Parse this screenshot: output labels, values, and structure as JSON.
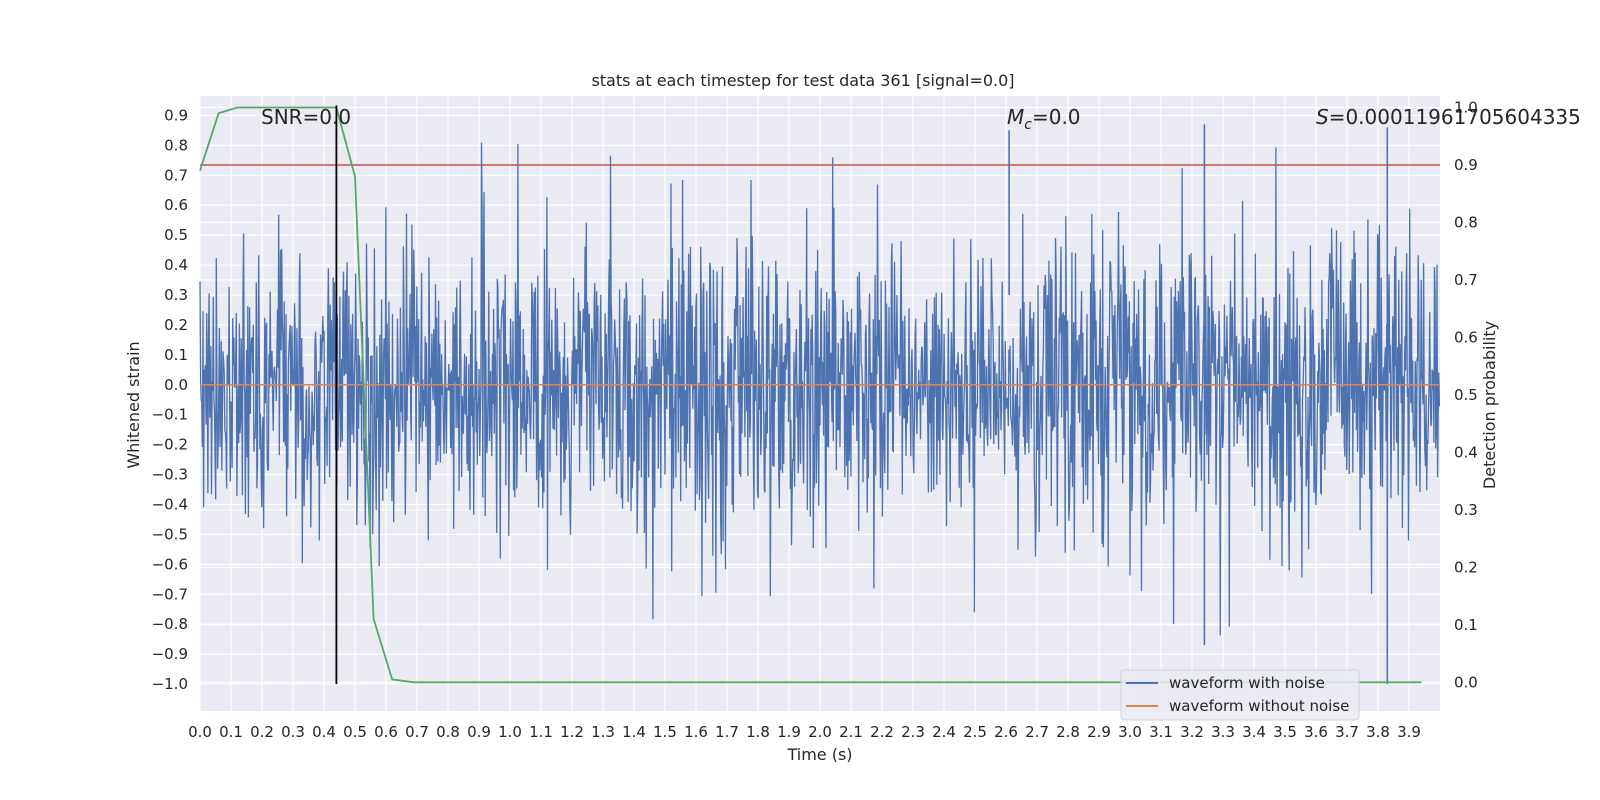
{
  "chart_data": {
    "type": "line",
    "title": "stats at each timestep for test data 361 [signal=0.0]",
    "xlabel": "Time (s)",
    "ylabel": "Whitened strain",
    "y2label": "Detection probability",
    "xlim": [
      0.0,
      4.0
    ],
    "ylim": [
      -1.09,
      0.965
    ],
    "y2lim": [
      -0.05,
      1.02
    ],
    "xticks": [
      "0.0",
      "0.1",
      "0.2",
      "0.3",
      "0.4",
      "0.5",
      "0.6",
      "0.7",
      "0.8",
      "0.9",
      "1.0",
      "1.1",
      "1.2",
      "1.3",
      "1.4",
      "1.5",
      "1.6",
      "1.7",
      "1.8",
      "1.9",
      "2.0",
      "2.1",
      "2.2",
      "2.3",
      "2.4",
      "2.5",
      "2.6",
      "2.7",
      "2.8",
      "2.9",
      "3.0",
      "3.1",
      "3.2",
      "3.3",
      "3.4",
      "3.5",
      "3.6",
      "3.7",
      "3.8",
      "3.9"
    ],
    "yticks": [
      "0.9",
      "0.8",
      "0.7",
      "0.6",
      "0.5",
      "0.4",
      "0.3",
      "0.2",
      "0.1",
      "0.0",
      "−0.1",
      "−0.2",
      "−0.3",
      "−0.4",
      "−0.5",
      "−0.6",
      "−0.7",
      "−0.8",
      "−0.9",
      "−1.0"
    ],
    "y2ticks": [
      "1.0",
      "0.9",
      "0.8",
      "0.7",
      "0.6",
      "0.5",
      "0.4",
      "0.3",
      "0.2",
      "0.1",
      "0.0"
    ],
    "annotations": {
      "snr": "SNR=0.0",
      "mc_symbol": "M",
      "mc_sub": "c",
      "mc_value": "=0.0",
      "s_symbol": "S",
      "s_value": "=0.00011961705604335"
    },
    "grid": true,
    "legend_position": "lower-right",
    "legend": [
      "waveform with noise",
      "waveform without noise"
    ],
    "series": [
      {
        "name": "waveform with noise",
        "color": "#4c72b0",
        "envelope": "noise, max ≈ 0.87, min ≈ -1.0",
        "amplitude_std": 0.25
      },
      {
        "name": "waveform without noise",
        "color": "#dd8452",
        "values_constant": 0.0
      },
      {
        "color": "#55a868",
        "axis": "y2",
        "x": [
          0.0,
          0.06,
          0.12,
          0.18,
          0.25,
          0.31,
          0.37,
          0.44,
          0.5,
          0.56,
          0.62,
          0.69,
          3.94
        ],
        "values": [
          0.89,
          0.99,
          1.0,
          1.0,
          1.0,
          1.0,
          1.0,
          1.0,
          0.88,
          0.11,
          0.005,
          0.0,
          0.0
        ]
      },
      {
        "color": "#c44e52",
        "axis": "y2",
        "values_constant": 0.9
      }
    ],
    "vertical_marker": {
      "x": 0.44,
      "color": "#000000"
    }
  }
}
